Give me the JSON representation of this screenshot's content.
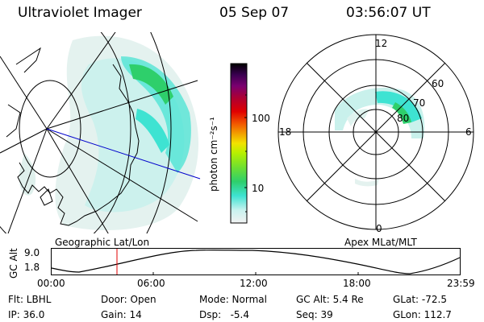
{
  "header": {
    "instrument": "Ultraviolet Imager",
    "date": "05 Sep 07",
    "time": "03:56:07 UT"
  },
  "panels": {
    "left_label": "Geographic Lat/Lon",
    "right_label": "Apex MLat/MLT"
  },
  "colorbar": {
    "unit_label": "photon cm⁻²s⁻¹",
    "ticks": [
      "100",
      "10"
    ],
    "colors": [
      "#f2f2f2",
      "#c9f2ef",
      "#3ee3d2",
      "#2ecf6b",
      "#6fe030",
      "#b8f000",
      "#f2e200",
      "#f2a000",
      "#f25a00",
      "#e00000",
      "#b00030",
      "#7a0070",
      "#3a0050",
      "#000000"
    ]
  },
  "polar": {
    "mlt_labels": [
      "12",
      "18",
      "6",
      "0"
    ],
    "mlat_labels": [
      "60",
      "70",
      "80"
    ]
  },
  "altitude_plot": {
    "ylabel": "GC Alt",
    "yticks": [
      "9.0",
      "1.8"
    ],
    "xticks": [
      "00:00",
      "06:00",
      "12:00",
      "18:00",
      "23:59"
    ]
  },
  "info": {
    "flt": "Flt: LBHL",
    "ip": "IP: 36.0",
    "door": "Door: Open",
    "gain": "Gain: 14",
    "mode": "Mode: Normal",
    "dsp": "Dsp:   -5.4",
    "gcalt": "GC Alt: 5.4 Re",
    "seq": "Seq: 39",
    "glat": "GLat: -72.5",
    "glon": "GLon: 112.7"
  }
}
